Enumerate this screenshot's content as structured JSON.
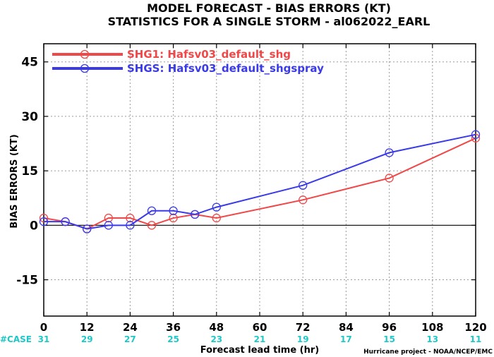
{
  "chart_data": {
    "type": "line",
    "title": "MODEL FORECAST - BIAS ERRORS (KT)",
    "subtitle": "STATISTICS FOR A SINGLE STORM - al062022_EARL",
    "ylabel": "BIAS ERRORS (KT)",
    "xlabel": "Forecast lead time (hr)",
    "xlim": [
      0,
      120
    ],
    "ylim": [
      -25,
      50
    ],
    "xticks": [
      0,
      12,
      24,
      36,
      48,
      60,
      72,
      84,
      96,
      108,
      120
    ],
    "yticks": [
      -15,
      0,
      15,
      30,
      45
    ],
    "grid": true,
    "legend_position": "top-left",
    "series": [
      {
        "name": "SHG1: Hafsv03_default_shg",
        "color": "#f04848",
        "x": [
          0,
          6,
          12,
          18,
          24,
          30,
          36,
          42,
          48,
          72,
          96,
          120
        ],
        "y": [
          2,
          1,
          -1,
          2,
          2,
          0,
          2,
          3,
          2,
          7,
          13,
          24
        ]
      },
      {
        "name": "SHGS: Hafsv03_default_shgspray",
        "color": "#3a3ae8",
        "x": [
          0,
          6,
          12,
          18,
          24,
          30,
          36,
          42,
          48,
          72,
          96,
          120
        ],
        "y": [
          1,
          1,
          -1,
          0,
          0,
          4,
          4,
          3,
          5,
          11,
          20,
          25
        ]
      }
    ],
    "case_label": "#CASE",
    "case_counts": [
      {
        "x": 0,
        "n": "31"
      },
      {
        "x": 12,
        "n": "29"
      },
      {
        "x": 24,
        "n": "27"
      },
      {
        "x": 36,
        "n": "25"
      },
      {
        "x": 48,
        "n": "23"
      },
      {
        "x": 60,
        "n": "21"
      },
      {
        "x": 72,
        "n": "19"
      },
      {
        "x": 84,
        "n": "17"
      },
      {
        "x": 96,
        "n": "15"
      },
      {
        "x": 108,
        "n": "13"
      },
      {
        "x": 120,
        "n": "11"
      }
    ],
    "credit": "Hurricane project - NOAA/NCEP/EMC"
  }
}
